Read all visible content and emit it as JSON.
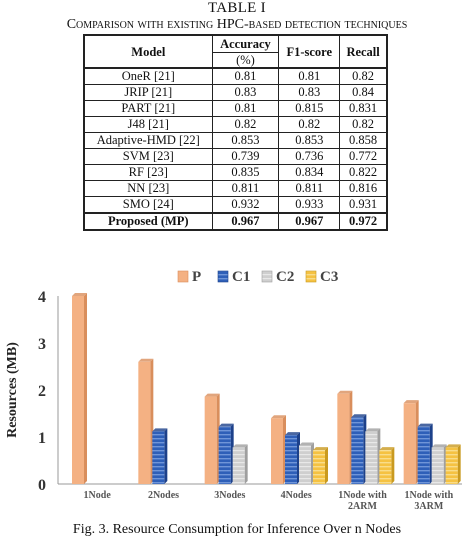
{
  "table": {
    "title": "TABLE I",
    "caption": "Comparison with existing HPC-based detection techniques",
    "headers": [
      "Model",
      "Accuracy",
      "F1-score",
      "Recall"
    ],
    "accuracy_unit": "(%)",
    "rows": [
      [
        "OneR [21]",
        "0.81",
        "0.81",
        "0.82"
      ],
      [
        "JRIP [21]",
        "0.83",
        "0.83",
        "0.84"
      ],
      [
        "PART [21]",
        "0.81",
        "0.815",
        "0.831"
      ],
      [
        "J48 [21]",
        "0.82",
        "0.82",
        "0.82"
      ],
      [
        "Adaptive-HMD [22]",
        "0.853",
        "0.853",
        "0.858"
      ],
      [
        "SVM [23]",
        "0.739",
        "0.736",
        "0.772"
      ],
      [
        "RF [23]",
        "0.835",
        "0.834",
        "0.822"
      ],
      [
        "NN [23]",
        "0.811",
        "0.811",
        "0.816"
      ],
      [
        "SMO [24]",
        "0.932",
        "0.933",
        "0.931"
      ]
    ],
    "final_row": [
      "Proposed (MP)",
      "0.967",
      "0.967",
      "0.972"
    ]
  },
  "chart_data": {
    "type": "bar",
    "title": "",
    "xlabel": "",
    "ylabel": "Resources (MB)",
    "ylim": [
      0,
      4
    ],
    "yticks": [
      "0",
      "1",
      "2",
      "3",
      "4"
    ],
    "legend_position": "top",
    "categories": [
      "1Node",
      "2Nodes",
      "3Nodes",
      "4Nodes",
      "1Node with 2ARM",
      "1Node with 3ARM"
    ],
    "series": [
      {
        "name": "P",
        "color": "#f4b183",
        "values": [
          4.0,
          2.6,
          1.86,
          1.4,
          1.92,
          1.72
        ]
      },
      {
        "name": "C1",
        "color": "#2e5fb8",
        "values": [
          null,
          1.12,
          1.22,
          1.04,
          1.42,
          1.22
        ]
      },
      {
        "name": "C2",
        "color": "#c9c9c9",
        "values": [
          null,
          null,
          0.78,
          0.82,
          1.12,
          0.78
        ]
      },
      {
        "name": "C3",
        "color": "#f5c242",
        "values": [
          null,
          null,
          null,
          0.72,
          0.72,
          0.78
        ]
      }
    ]
  },
  "figure": {
    "caption": "Fig. 3.  Resource Consumption for Inference Over n Nodes"
  }
}
